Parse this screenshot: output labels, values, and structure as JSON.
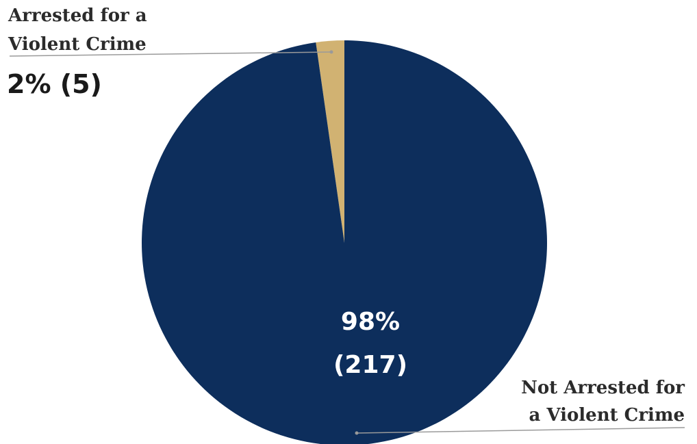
{
  "chart_data": {
    "type": "pie",
    "title": "",
    "slices": [
      {
        "label_line1": "Arrested for a",
        "label_line2": "Violent Crime",
        "value": 5,
        "percent_label": "2% (5)",
        "color": "#d1b272"
      },
      {
        "label_line1": "Not Arrested for",
        "label_line2": "a Violent Crime",
        "value": 217,
        "percent_label_line1": "98%",
        "percent_label_line2": "(217)",
        "color": "#0d2e5c"
      }
    ],
    "start_angle_deg": 0,
    "direction": "counterclockwise"
  }
}
